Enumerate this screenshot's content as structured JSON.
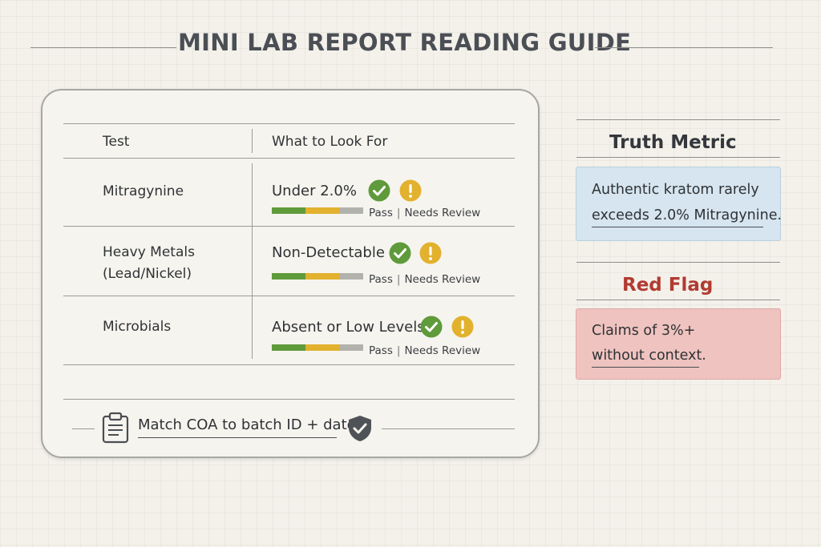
{
  "page": {
    "title": "MINI LAB REPORT READING GUIDE"
  },
  "table": {
    "headers": {
      "test": "Test",
      "look_for": "What to Look For"
    },
    "rows": [
      {
        "test_line1": "Mitragynine",
        "test_line2": "",
        "criterion": "Under 2.0%",
        "pass_label": "Pass",
        "review_label": "Needs Review"
      },
      {
        "test_line1": "Heavy Metals",
        "test_line2": "(Lead/Nickel)",
        "criterion": "Non-Detectable",
        "pass_label": "Pass",
        "review_label": "Needs Review"
      },
      {
        "test_line1": "Microbials",
        "test_line2": "",
        "criterion": "Absent or Low Levels",
        "pass_label": "Pass",
        "review_label": "Needs Review"
      }
    ],
    "footer": "Match COA to batch ID + date"
  },
  "truth_metric": {
    "title": "Truth Metric",
    "line1": "Authentic kratom rarely",
    "line2": "exceeds 2.0% Mitragynine."
  },
  "red_flag": {
    "title": "Red Flag",
    "line1": "Claims of 3%+",
    "line2": "without context."
  },
  "icons": {
    "pass": "check-circle-icon",
    "review": "exclamation-circle-icon",
    "clipboard": "clipboard-icon",
    "shield": "shield-check-icon"
  },
  "colors": {
    "pass_green": "#5f9a3b",
    "review_yellow": "#e2b12d",
    "neutral_gray": "#b2b2ad",
    "truth_box": "#d6e5ef",
    "red_box": "#efc3bf",
    "red_title": "#b23a31"
  }
}
